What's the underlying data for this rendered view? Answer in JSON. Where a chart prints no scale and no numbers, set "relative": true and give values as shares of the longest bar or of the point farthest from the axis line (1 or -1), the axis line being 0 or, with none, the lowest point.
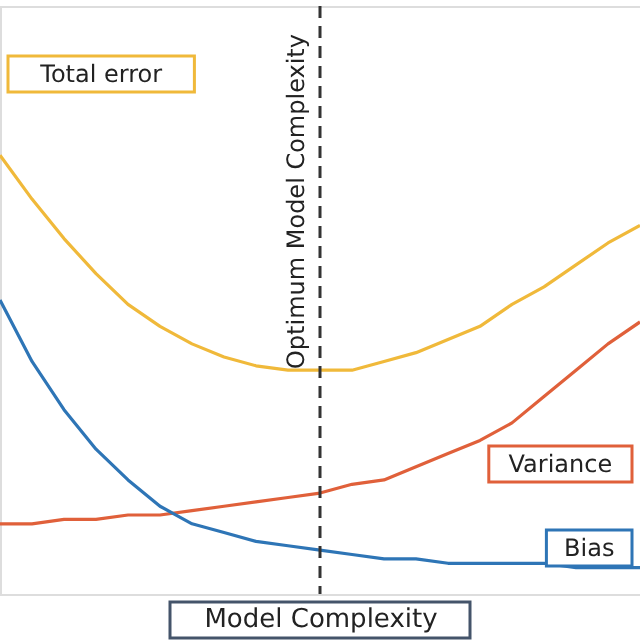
{
  "chart_data": {
    "type": "line",
    "relative": true,
    "xlabel": "Model Complexity",
    "line_style": "solid",
    "categories": [
      null,
      null,
      null,
      null,
      null,
      null,
      null,
      null,
      null,
      null,
      null,
      null,
      null,
      null,
      null,
      null,
      null,
      null,
      null,
      null,
      null
    ],
    "series": [
      {
        "name": "Total error",
        "color": "#f0b93a",
        "values": [
          1.0,
          0.9,
          0.81,
          0.73,
          0.66,
          0.61,
          0.57,
          0.54,
          0.52,
          0.51,
          0.51,
          0.51,
          0.53,
          0.55,
          0.58,
          0.61,
          0.66,
          0.7,
          0.75,
          0.8,
          0.84
        ]
      },
      {
        "name": "Variance",
        "color": "#e0603a",
        "values": [
          0.16,
          0.16,
          0.17,
          0.17,
          0.18,
          0.18,
          0.19,
          0.2,
          0.21,
          0.22,
          0.23,
          0.25,
          0.26,
          0.29,
          0.32,
          0.35,
          0.39,
          0.45,
          0.51,
          0.57,
          0.62
        ]
      },
      {
        "name": "Bias",
        "color": "#2e75b6",
        "values": [
          0.67,
          0.53,
          0.42,
          0.33,
          0.26,
          0.2,
          0.16,
          0.14,
          0.12,
          0.11,
          0.1,
          0.09,
          0.08,
          0.08,
          0.07,
          0.07,
          0.07,
          0.07,
          0.06,
          0.06,
          0.06
        ]
      }
    ],
    "annotations": [
      "Optimum Model Complexity"
    ]
  }
}
